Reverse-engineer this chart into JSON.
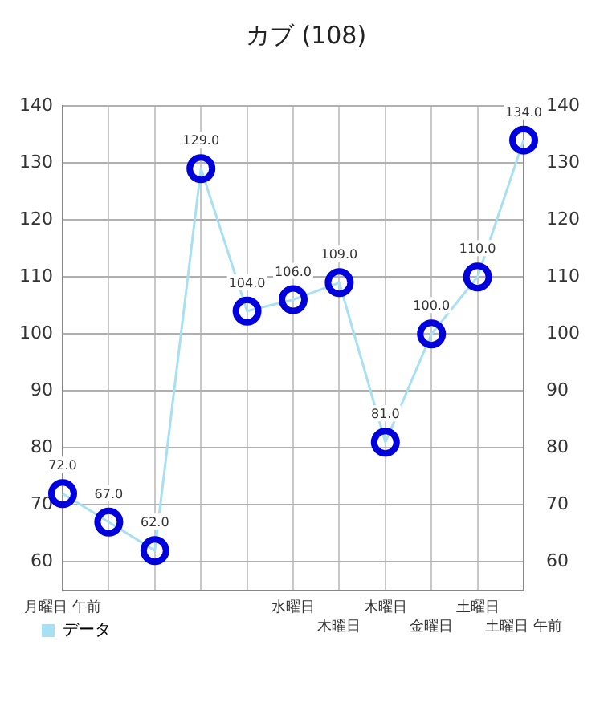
{
  "chart_data": {
    "type": "line",
    "title": "カブ (108)",
    "categories": [
      "月曜日 午前",
      null,
      null,
      null,
      null,
      "水曜日",
      "木曜日",
      "木曜日",
      "金曜日",
      "土曜日",
      "土曜日 午前"
    ],
    "series": [
      {
        "name": "データ",
        "color": "#a6e0f2",
        "values": [
          72,
          67,
          62,
          129,
          104,
          106,
          109,
          81,
          100,
          110,
          134
        ],
        "value_labels": [
          "72.0",
          "67.0",
          "62.0",
          "129.0",
          "104.0",
          "106.0",
          "109.0",
          "81.0",
          "100.0",
          "110.0",
          "134.0"
        ]
      }
    ],
    "colors": [
      "#0000dd",
      "#0000dd",
      "#0000dd",
      "#0000dd",
      "#0000dd",
      "#0000dd",
      "#0000dd",
      "#0000dd",
      "#0000dd",
      "#0000dd",
      "#0000dd"
    ],
    "ylim": [
      55,
      140
    ],
    "yticks": [
      60,
      70,
      80,
      90,
      100,
      110,
      120,
      130,
      140
    ],
    "y2lim": [
      55,
      140
    ],
    "y2ticks": [
      60,
      70,
      80,
      90,
      100,
      110,
      120,
      130,
      140
    ],
    "grid": true,
    "legend": "bottom left",
    "marker": "circle",
    "line_style": "solid"
  }
}
